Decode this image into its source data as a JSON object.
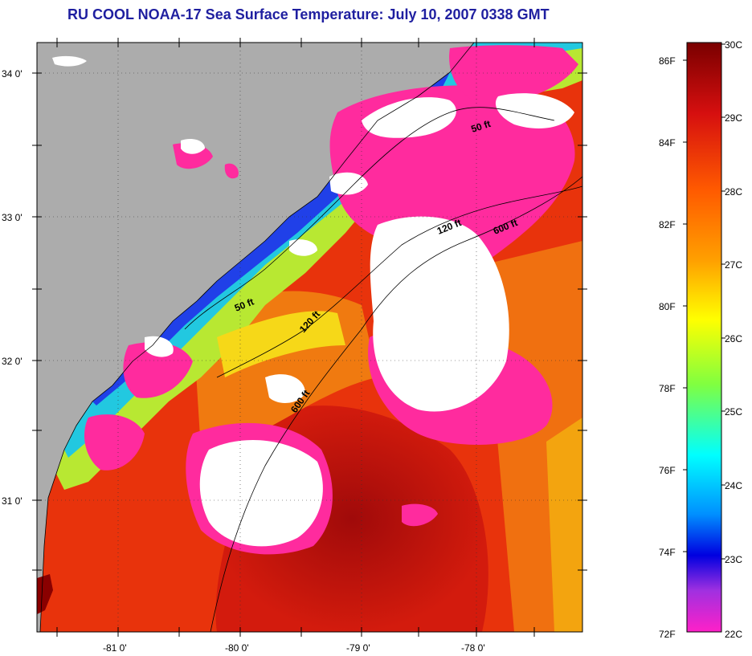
{
  "title": "RU COOL  NOAA-17  Sea Surface Temperature:  July 10, 2007 0338 GMT",
  "axes": {
    "lat_ticks": [
      "34 0'",
      "33 0'",
      "32 0'",
      "31 0'"
    ],
    "lon_ticks": [
      "-81 0'",
      "-80 0'",
      "-79 0'",
      "-78 0'"
    ]
  },
  "depth_contours": [
    "50 ft",
    "50 ft",
    "120 ft",
    "120 ft",
    "600 ft",
    "600 ft"
  ],
  "colorbar": {
    "fahrenheit": [
      "86F",
      "84F",
      "82F",
      "80F",
      "78F",
      "76F",
      "74F",
      "72F"
    ],
    "celsius": [
      "30C",
      "29C",
      "28C",
      "27C",
      "26C",
      "25C",
      "24C",
      "23C",
      "22C"
    ]
  },
  "colors": {
    "title": "#1f1fa0",
    "land": "#acacac",
    "cloud": "#ffffff",
    "warm": "#cc1a0a",
    "cool_pink": "#ff2b9e"
  }
}
